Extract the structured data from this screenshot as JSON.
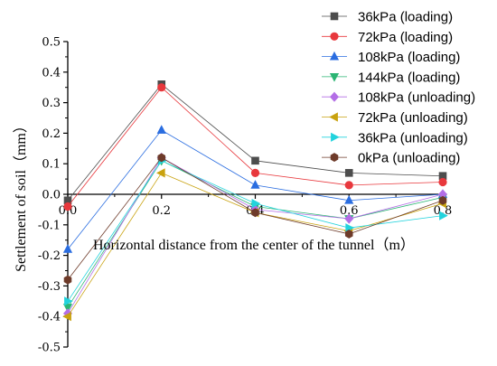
{
  "chart_data": {
    "type": "line",
    "xlabel": "Horizontal distance from the center of the tunnel（m）",
    "ylabel": "Settlement of soil（mm）",
    "x": [
      0.0,
      0.2,
      0.4,
      0.6,
      0.8
    ],
    "xlim": [
      0.0,
      0.8
    ],
    "ylim": [
      -0.5,
      0.5
    ],
    "x_ticks": [
      0.0,
      0.2,
      0.4,
      0.6,
      0.8
    ],
    "x_tick_labels": [
      "0.0",
      "0.2",
      "0.4",
      "0.6",
      "0.8"
    ],
    "y_ticks": [
      -0.5,
      -0.4,
      -0.3,
      -0.2,
      -0.1,
      0.0,
      0.1,
      0.2,
      0.3,
      0.4,
      0.5
    ],
    "y_tick_labels": [
      "-0.5",
      "-0.4",
      "-0.3",
      "-0.2",
      "-0.1",
      "0.0",
      "0.1",
      "0.2",
      "0.3",
      "0.4",
      "0.5"
    ],
    "grid": false,
    "legend_position": "top-right",
    "series": [
      {
        "name": "36kPa (loading)",
        "marker": "square",
        "color": "#4d4d4d",
        "values": [
          -0.02,
          0.36,
          0.11,
          0.07,
          0.06
        ]
      },
      {
        "name": "72kPa (loading)",
        "marker": "circle",
        "color": "#e8383d",
        "values": [
          -0.04,
          0.35,
          0.07,
          0.03,
          0.04
        ]
      },
      {
        "name": "108kPa (loading)",
        "marker": "triangle-up",
        "color": "#2a6de0",
        "values": [
          -0.18,
          0.21,
          0.03,
          -0.02,
          0.0
        ]
      },
      {
        "name": "144kPa (loading)",
        "marker": "triangle-down",
        "color": "#2bb573",
        "values": [
          -0.37,
          0.11,
          -0.04,
          -0.08,
          -0.01
        ]
      },
      {
        "name": "108kPa (unloading)",
        "marker": "diamond",
        "color": "#b36ee6",
        "values": [
          -0.39,
          0.12,
          -0.05,
          -0.08,
          0.0
        ]
      },
      {
        "name": "72kPa (unloading)",
        "marker": "triangle-left",
        "color": "#c9a20f",
        "values": [
          -0.4,
          0.07,
          -0.06,
          -0.12,
          -0.03
        ]
      },
      {
        "name": "36kPa (unloading)",
        "marker": "triangle-right",
        "color": "#22d3dd",
        "values": [
          -0.35,
          0.11,
          -0.03,
          -0.11,
          -0.07
        ]
      },
      {
        "name": "0kPa (unloading)",
        "marker": "hexagon",
        "color": "#6e3b2a",
        "values": [
          -0.28,
          0.12,
          -0.06,
          -0.13,
          -0.02
        ]
      }
    ]
  }
}
